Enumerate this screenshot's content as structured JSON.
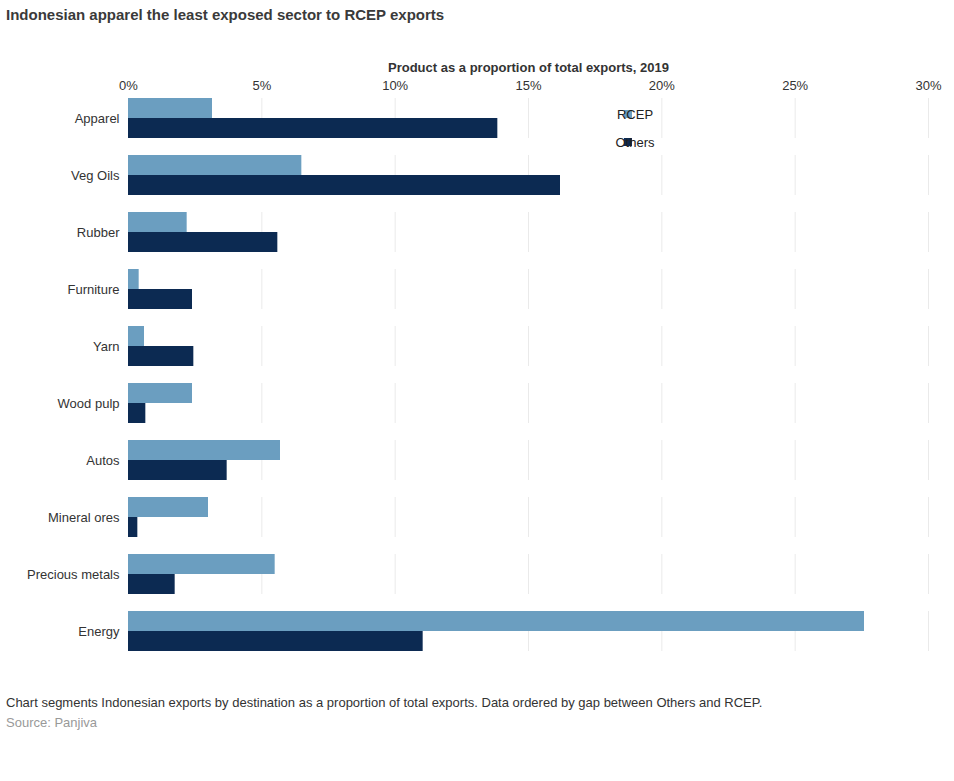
{
  "chart_data": {
    "type": "bar",
    "orientation": "horizontal",
    "title": "Indonesian apparel the least exposed sector to RCEP exports",
    "x_label": "Product as a proportion of total exports, 2019",
    "categories": [
      "Apparel",
      "Veg Oils",
      "Rubber",
      "Furniture",
      "Yarn",
      "Wood pulp",
      "Autos",
      "Mineral ores",
      "Precious metals",
      "Energy"
    ],
    "series": [
      {
        "name": "RCEP",
        "color": "#6b9ec0",
        "values": [
          3.15,
          6.5,
          2.2,
          0.4,
          0.6,
          2.4,
          5.7,
          3.0,
          5.5,
          27.6
        ]
      },
      {
        "name": "Others",
        "color": "#0c2a52",
        "values": [
          13.85,
          16.2,
          5.6,
          2.4,
          2.45,
          0.65,
          3.7,
          0.35,
          1.75,
          11.05
        ]
      }
    ],
    "xlim": [
      0,
      30
    ],
    "xticks": [
      {
        "value": 0,
        "label": "0%"
      },
      {
        "value": 5,
        "label": "5%"
      },
      {
        "value": 10,
        "label": "10%"
      },
      {
        "value": 15,
        "label": "15%"
      },
      {
        "value": 20,
        "label": "20%"
      },
      {
        "value": 25,
        "label": "25%"
      },
      {
        "value": 30,
        "label": "30%"
      }
    ],
    "grid": true,
    "legend": "top-right",
    "caption": "Chart segments Indonesian exports by destination as a proportion of total exports. Data ordered by gap between Others and RCEP.",
    "source": "Source: Panjiva"
  }
}
